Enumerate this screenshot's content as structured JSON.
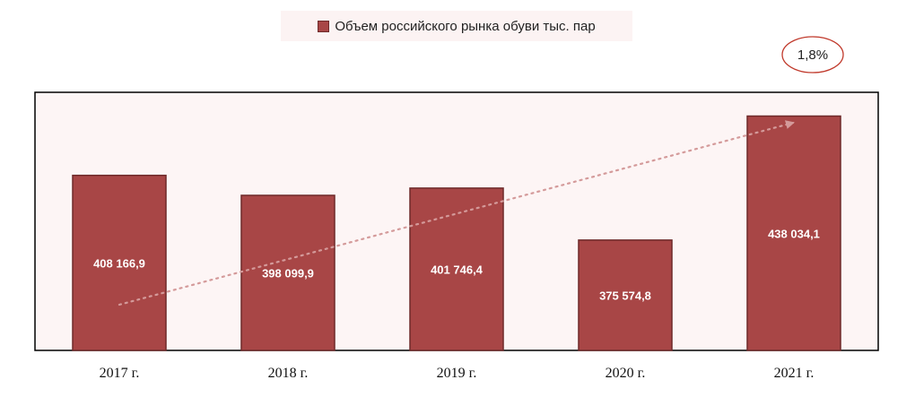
{
  "chart_data": {
    "type": "bar",
    "categories": [
      "2017 г.",
      "2018 г.",
      "2019 г.",
      "2020 г.",
      "2021 г."
    ],
    "series": [
      {
        "name": "Объем российского рынка обуви тыс. пар",
        "values": [
          408166.9,
          398099.9,
          401746.4,
          375574.8,
          438034.1
        ],
        "value_labels": [
          "408 166,9",
          "398 099,9",
          "401 746,4",
          "375 574,8",
          "438 034,1"
        ]
      }
    ],
    "ylim": [
      320000,
      450000
    ],
    "grid": false,
    "legend_placement": "top-center",
    "trend_annotation": "1,8%",
    "colors": {
      "bar": "#a84646",
      "bar_border": "#6e2a2a",
      "plot_background": "#fdf5f5",
      "trend_arrow": "#d49a9a",
      "annotation_circle": "#c0392b"
    }
  }
}
